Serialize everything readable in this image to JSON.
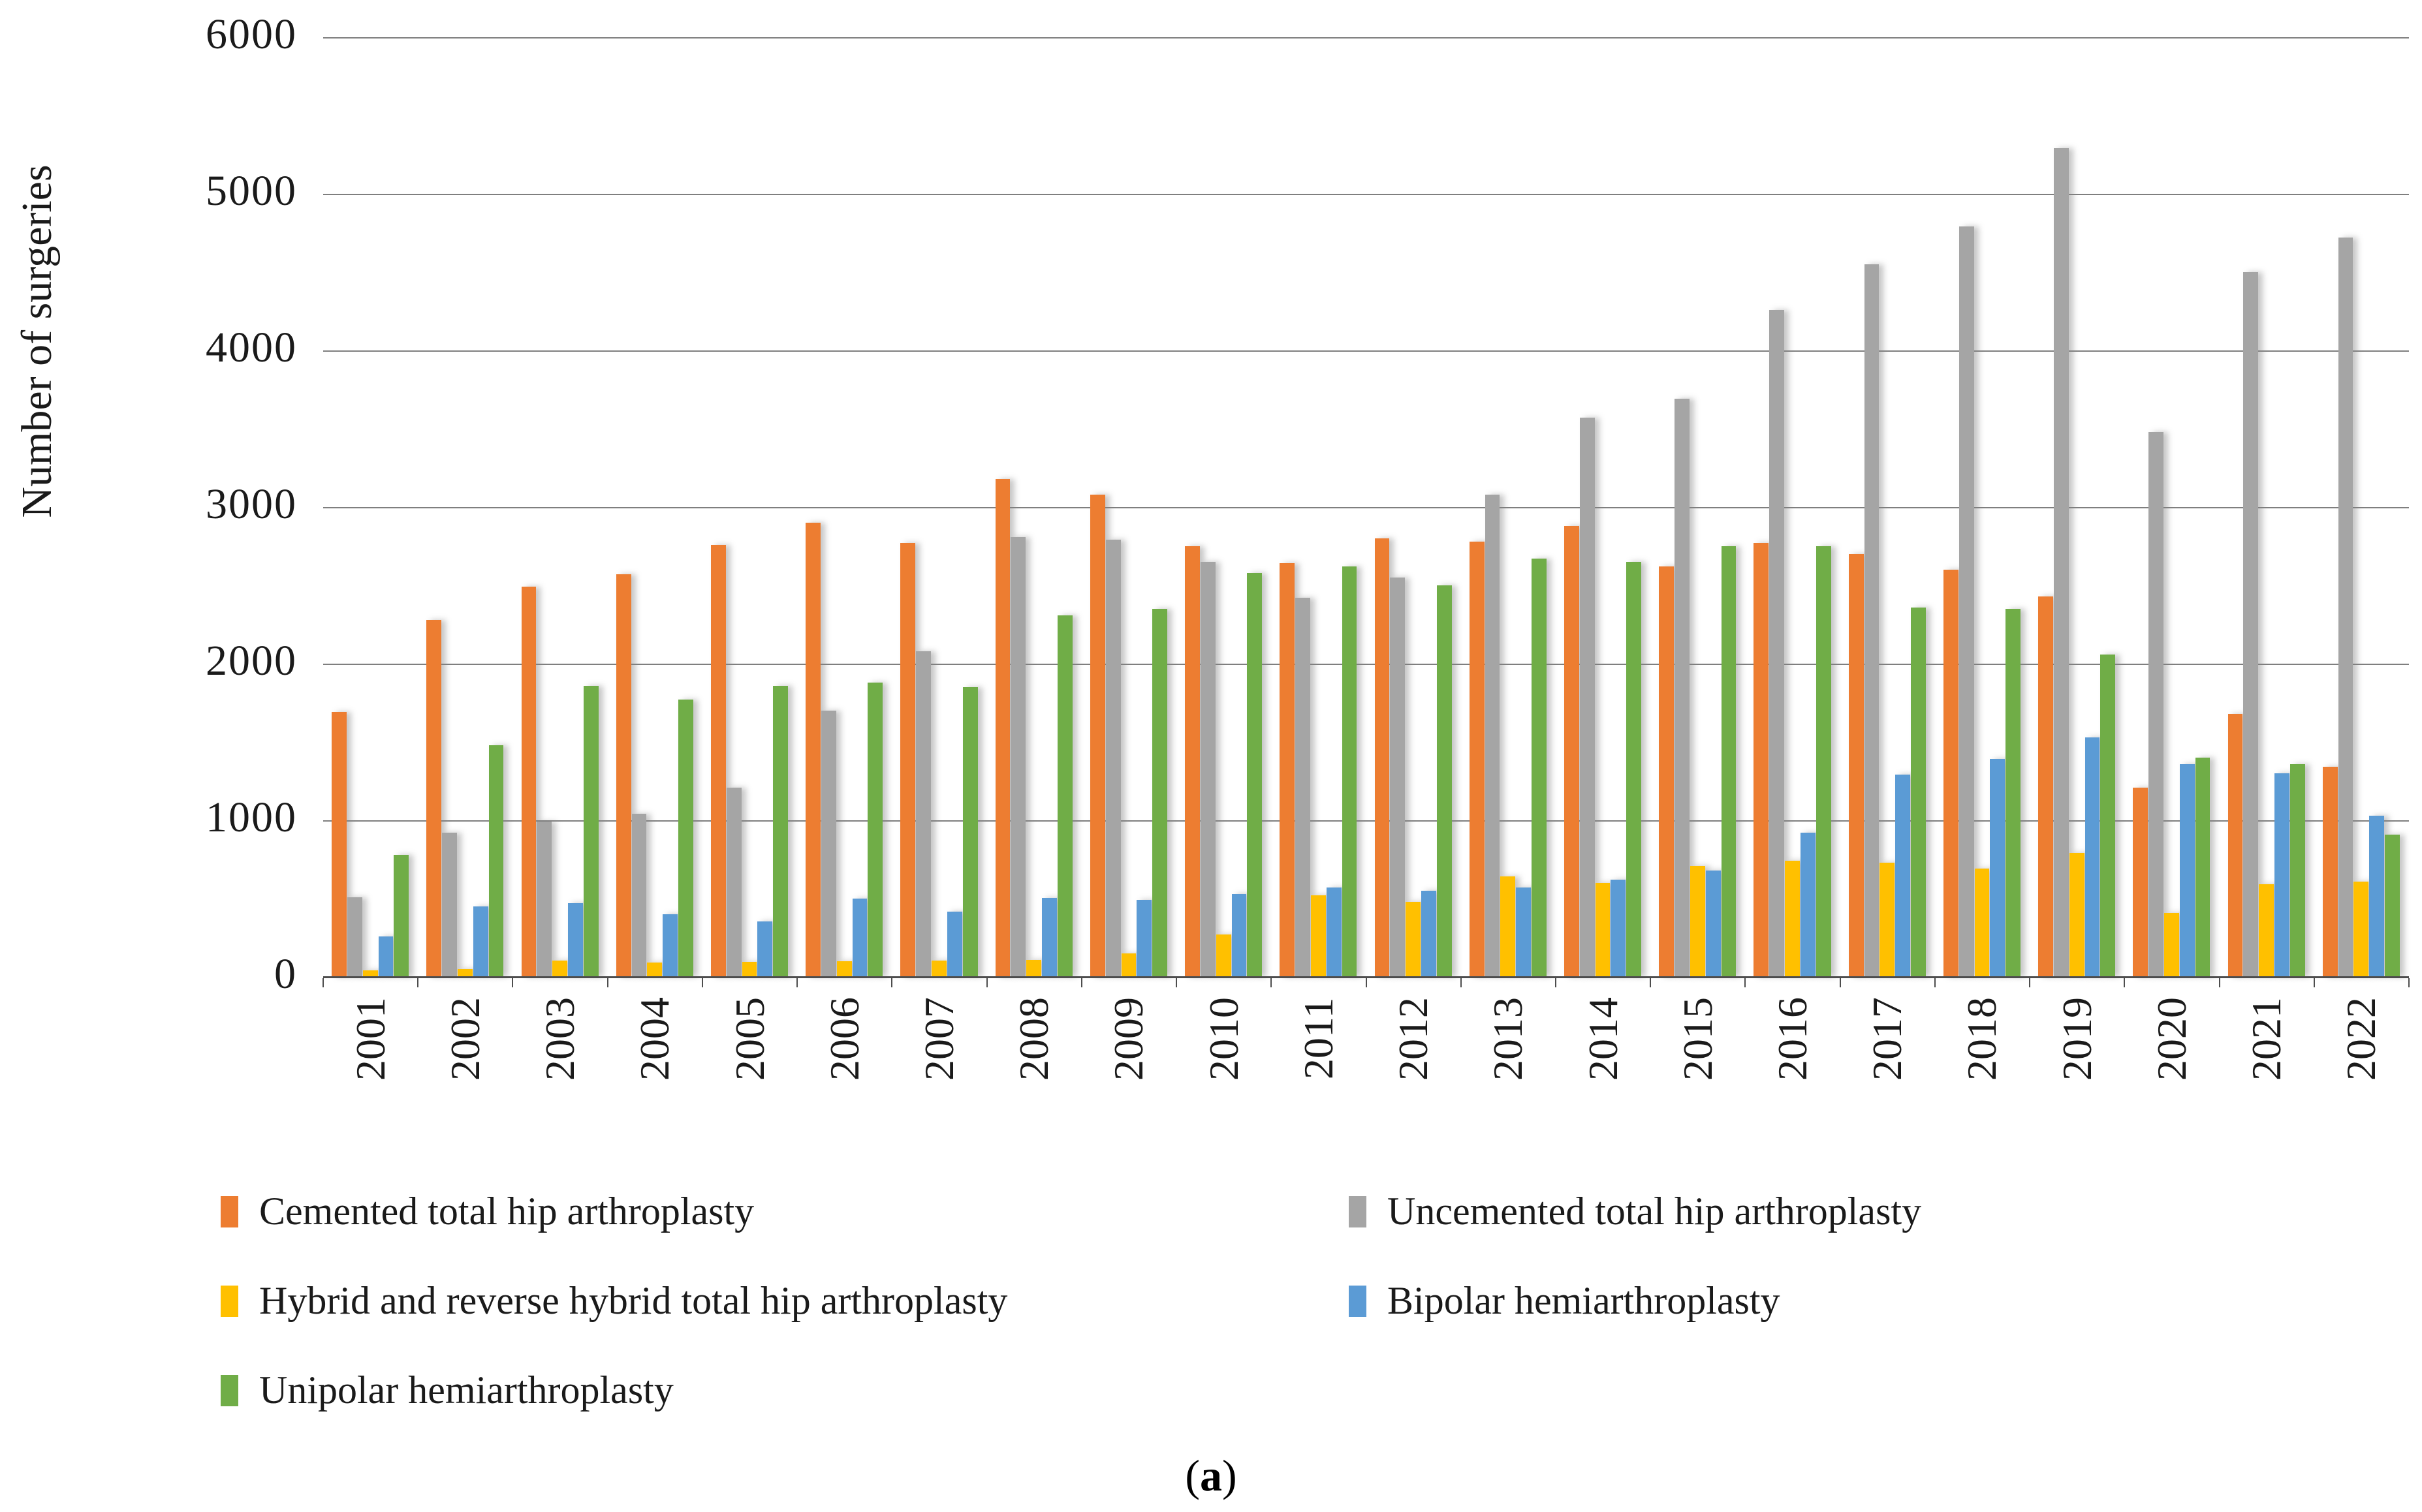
{
  "chart_data": {
    "type": "bar",
    "title": "",
    "xlabel": "",
    "ylabel": "Number of surgeries",
    "ylim": [
      0,
      6000
    ],
    "ytick_interval": 1000,
    "yticks": [
      0,
      1000,
      2000,
      3000,
      4000,
      5000,
      6000
    ],
    "grid": true,
    "legend_position": "bottom",
    "categories": [
      "2001",
      "2002",
      "2003",
      "2004",
      "2005",
      "2006",
      "2007",
      "2008",
      "2009",
      "2010",
      "2011",
      "2012",
      "2013",
      "2014",
      "2015",
      "2016",
      "2017",
      "2018",
      "2019",
      "2020",
      "2021",
      "2022"
    ],
    "series": [
      {
        "name": "Cemented total hip arthroplasty",
        "color": "#ED7D31",
        "values": [
          1690,
          2280,
          2490,
          2570,
          2760,
          2900,
          2770,
          3180,
          3080,
          2750,
          2640,
          2800,
          2780,
          2880,
          2620,
          2770,
          2700,
          2600,
          2430,
          1210,
          1680,
          1340
        ]
      },
      {
        "name": "Uncemented total hip arthroplasty",
        "color": "#A5A5A5",
        "values": [
          510,
          920,
          990,
          1040,
          1210,
          1700,
          2080,
          2810,
          2790,
          2650,
          2420,
          2550,
          3080,
          3570,
          3690,
          4260,
          4550,
          4790,
          5290,
          3480,
          4500,
          4720
        ]
      },
      {
        "name": "Hybrid and reverse hybrid total hip arthroplasty",
        "color": "#FFC000",
        "values": [
          40,
          50,
          105,
          90,
          95,
          100,
          105,
          110,
          150,
          270,
          520,
          480,
          640,
          600,
          710,
          740,
          730,
          690,
          790,
          410,
          590,
          610
        ]
      },
      {
        "name": "Bipolar hemiarthroplasty",
        "color": "#5B9BD5",
        "values": [
          260,
          450,
          470,
          400,
          355,
          500,
          415,
          505,
          490,
          530,
          570,
          550,
          570,
          620,
          680,
          920,
          1290,
          1390,
          1530,
          1360,
          1300,
          1030
        ]
      },
      {
        "name": "Unipolar hemiarthroplasty",
        "color": "#70AD47",
        "values": [
          780,
          1480,
          1860,
          1770,
          1860,
          1880,
          1850,
          2310,
          2350,
          2580,
          2620,
          2500,
          2670,
          2650,
          2750,
          2750,
          2360,
          2350,
          2060,
          1400,
          1360,
          910
        ]
      }
    ]
  },
  "caption": {
    "open": "(",
    "letter": "a",
    "close": ")"
  },
  "colors": {
    "gridline": "#7f7f7f",
    "axis_line": "#4d4d4d",
    "text": "#1a1a1a"
  }
}
